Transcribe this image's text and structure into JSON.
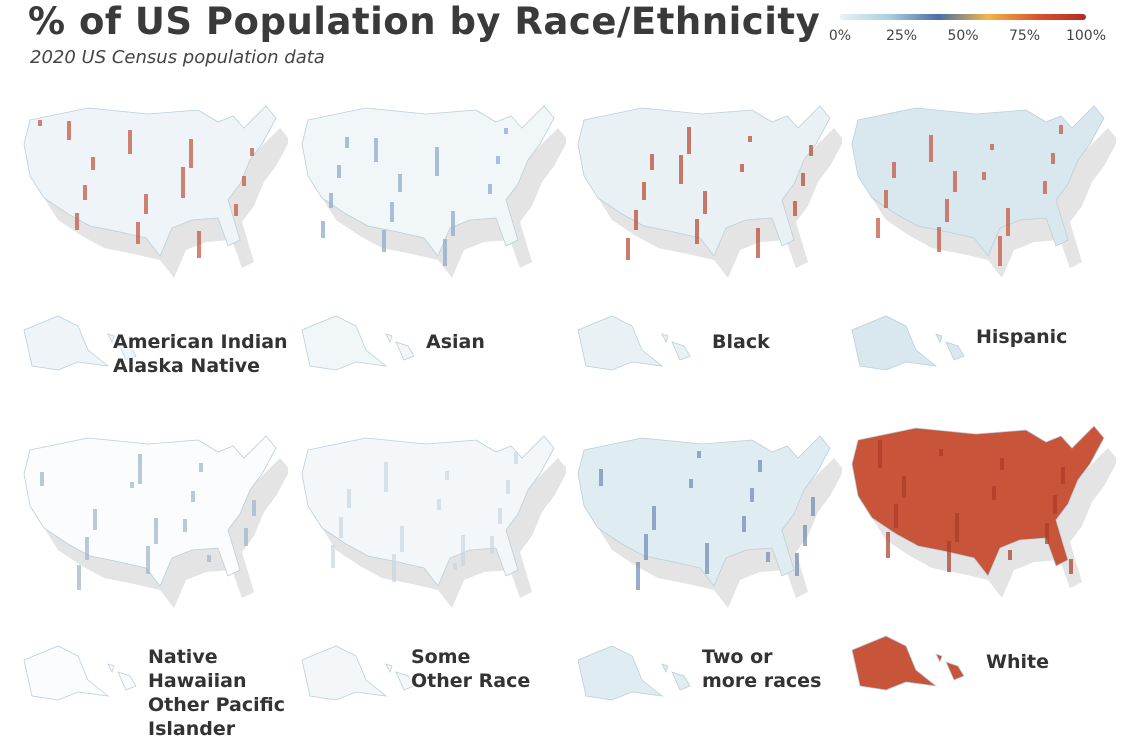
{
  "header": {
    "title": "% of US Population by Race/Ethnicity",
    "subtitle": "2020 US Census population data"
  },
  "legend": {
    "colors": [
      "#e8f1f6",
      "#a9cfe0",
      "#4a6fa5",
      "#f0b64a",
      "#d9552f",
      "#b52a22"
    ],
    "ticks": [
      "0%",
      "25%",
      "50%",
      "75%",
      "100%"
    ]
  },
  "panels": [
    {
      "label": [
        "American Indian",
        "Alaska Native"
      ]
    },
    {
      "label": [
        "Asian"
      ]
    },
    {
      "label": [
        "Black"
      ]
    },
    {
      "label": [
        "Hispanic"
      ]
    },
    {
      "label": [
        "Native Hawaiian",
        "Other Pacific Islander"
      ]
    },
    {
      "label": [
        "Some",
        "Other Race"
      ]
    },
    {
      "label": [
        "Two or",
        "more races"
      ]
    },
    {
      "label": [
        "White"
      ]
    }
  ]
}
